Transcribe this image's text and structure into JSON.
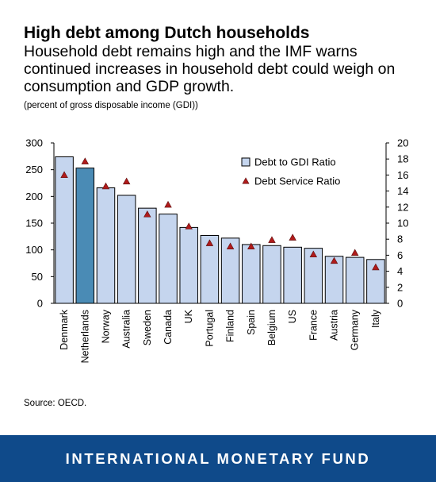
{
  "header": {
    "title": "High debt among Dutch households",
    "subtitle": "Household debt remains high and the IMF warns continued increases in household debt could weigh on consumption and GDP growth.",
    "unit_note": "(percent of gross disposable income (GDI))"
  },
  "source": "Source: OECD.",
  "footer": {
    "org": "INTERNATIONAL MONETARY FUND"
  },
  "colors": {
    "bar": "#c5d5ee",
    "bar_highlight": "#4a8bb5",
    "marker": "#b01b1b",
    "footer_bg": "#0f4a8a"
  },
  "chart_data": {
    "type": "bar",
    "categories": [
      "Denmark",
      "Netherlands",
      "Norway",
      "Australia",
      "Sweden",
      "Canada",
      "UK",
      "Portugal",
      "Finland",
      "Spain",
      "Belgium",
      "US",
      "France",
      "Austria",
      "Germany",
      "Italy"
    ],
    "highlight_category": "Netherlands",
    "series": [
      {
        "name": "Debt to GDI Ratio",
        "type": "bar",
        "axis": "left",
        "values": [
          274,
          253,
          216,
          202,
          178,
          167,
          142,
          127,
          122,
          110,
          108,
          105,
          103,
          88,
          86,
          82
        ]
      },
      {
        "name": "Debt Service Ratio",
        "type": "scatter",
        "axis": "right",
        "values": [
          16.0,
          17.7,
          14.6,
          15.2,
          11.1,
          12.3,
          9.6,
          7.5,
          7.1,
          7.1,
          7.9,
          8.2,
          6.1,
          5.3,
          6.3,
          4.5
        ]
      }
    ],
    "y_left": {
      "range": [
        0,
        300
      ],
      "ticks": [
        "0",
        "50",
        "100",
        "150",
        "200",
        "250",
        "300"
      ]
    },
    "y_right": {
      "range": [
        0,
        20
      ],
      "ticks": [
        "0",
        "2",
        "4",
        "6",
        "8",
        "10",
        "12",
        "14",
        "16",
        "18",
        "20"
      ]
    },
    "grid": false,
    "legend_position": "top-right"
  }
}
